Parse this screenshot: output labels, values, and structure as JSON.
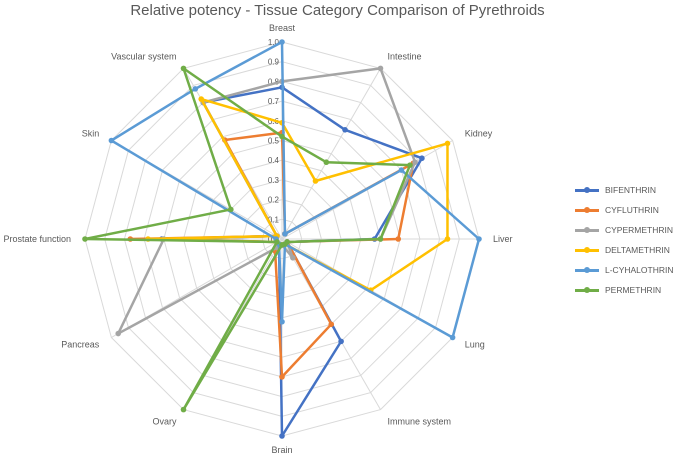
{
  "chart_data": {
    "type": "radar",
    "title": "Relative potency - Tissue Category Comparison of Pyrethroids",
    "categories": [
      "Breast",
      "Intestine",
      "Kidney",
      "Liver",
      "Lung",
      "Immune system",
      "Brain",
      "Ovary",
      "Pancreas",
      "Prostate function",
      "Skin",
      "Vascular system"
    ],
    "ticks": [
      "0.0",
      "0.1",
      "0.2",
      "0.3",
      "0.4",
      "0.5",
      "0.6",
      "0.7",
      "0.8",
      "0.9",
      "1.0"
    ],
    "rmax": 1.0,
    "grid": true,
    "legend_position": "right",
    "series": [
      {
        "name": "BIFENTHRIN",
        "color": "#4472C4",
        "values": [
          0.77,
          0.64,
          0.82,
          0.47,
          0.03,
          0.6,
          1.0,
          0.03,
          0.03,
          0.61,
          0.03,
          0.8
        ]
      },
      {
        "name": "CYFLUTHRIN",
        "color": "#ED7D31",
        "values": [
          0.54,
          0.03,
          0.77,
          0.59,
          0.03,
          0.5,
          0.7,
          0.07,
          0.03,
          0.77,
          0.03,
          0.58
        ]
      },
      {
        "name": "CYPERMETHRIN",
        "color": "#A5A5A5",
        "values": [
          0.8,
          1.0,
          0.78,
          0.5,
          0.03,
          0.11,
          0.03,
          0.05,
          0.96,
          0.6,
          0.03,
          0.8
        ]
      },
      {
        "name": "DELTAMETHRIN",
        "color": "#FFC000",
        "values": [
          0.59,
          0.34,
          0.97,
          0.84,
          0.52,
          0.03,
          0.03,
          0.03,
          0.03,
          0.68,
          0.03,
          0.82
        ]
      },
      {
        "name": "L-CYHALOTHRIN",
        "color": "#5B9BD5",
        "values": [
          1.0,
          0.03,
          0.7,
          1.0,
          1.0,
          0.03,
          0.42,
          0.03,
          0.03,
          0.03,
          1.0,
          0.88
        ]
      },
      {
        "name": "PERMETHRIN",
        "color": "#70AD47",
        "values": [
          0.52,
          0.45,
          0.75,
          0.5,
          0.03,
          0.03,
          0.03,
          1.0,
          0.03,
          1.0,
          0.3,
          1.0
        ]
      }
    ]
  }
}
